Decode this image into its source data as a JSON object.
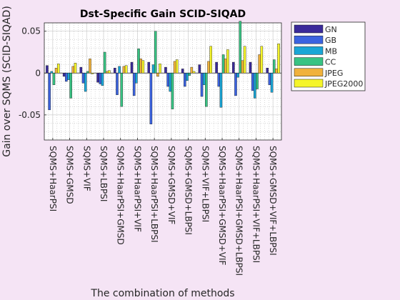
{
  "chart_data": {
    "type": "bar",
    "title": "Dst-Specific Gain SCID-SIQAD",
    "xlabel": "The combination of methods",
    "ylabel": "Gain over SQMS (SCID-SIQAD)",
    "ylim": [
      -0.08,
      0.06
    ],
    "yticks": [
      -0.05,
      0,
      0.05
    ],
    "ytick_labels": [
      "-0.05",
      "0",
      "0.05"
    ],
    "grid": true,
    "legend_position": "outside-right-top",
    "categories": [
      "SQMS+HaarPSI",
      "SQMS+GMSD",
      "SQMS+VIF",
      "SQMS+LBPSI",
      "SQMS+HaarPSI+GMSD",
      "SQMS+HaarPSI+VIF",
      "SQMS+HaarPSI+LBPSI",
      "SQMS+GMSD+VIF",
      "SQMS+GMSD+LBPSI",
      "SQMS+VIF+LBPSI",
      "SQMS+HaarPSI+GMSD+VIF",
      "SQMS+HaarPSI+GMSD+LBPSI",
      "SQMS+HaarPSI+VIF+LBPSI",
      "SQMS+GMSD+VIF+LBPSI"
    ],
    "series": [
      {
        "name": "GN",
        "color": "#3a2a9a",
        "values": [
          0.009,
          -0.004,
          0.007,
          -0.011,
          0.006,
          0.013,
          0.013,
          0.007,
          0.005,
          0.01,
          0.013,
          0.013,
          0.013,
          0.006
        ]
      },
      {
        "name": "GB",
        "color": "#3b63e0",
        "values": [
          -0.044,
          -0.01,
          -0.012,
          -0.013,
          -0.026,
          -0.027,
          -0.061,
          -0.016,
          -0.016,
          -0.028,
          -0.016,
          -0.027,
          -0.021,
          -0.014
        ]
      },
      {
        "name": "MB",
        "color": "#1aa6d6",
        "values": [
          0.002,
          -0.008,
          -0.022,
          -0.015,
          0.008,
          -0.012,
          0.01,
          -0.022,
          -0.009,
          -0.014,
          -0.041,
          -0.005,
          -0.03,
          -0.023
        ]
      },
      {
        "name": "CC",
        "color": "#38c383",
        "values": [
          -0.014,
          -0.03,
          0.002,
          0.025,
          -0.04,
          0.029,
          0.05,
          -0.043,
          -0.003,
          -0.04,
          0.022,
          0.062,
          -0.019,
          0.016
        ]
      },
      {
        "name": "JPEG",
        "color": "#f0b23c",
        "values": [
          0.006,
          0.008,
          0.017,
          0.002,
          0.008,
          0.017,
          -0.004,
          0.014,
          0.007,
          0.014,
          0.017,
          0.015,
          0.022,
          0.005
        ]
      },
      {
        "name": "JPEG2000",
        "color": "#f5f52a",
        "values": [
          0.011,
          0.012,
          -0.001,
          0.003,
          0.009,
          0.015,
          0.011,
          0.016,
          0.002,
          0.032,
          0.028,
          0.032,
          0.032,
          0.035
        ]
      }
    ]
  }
}
